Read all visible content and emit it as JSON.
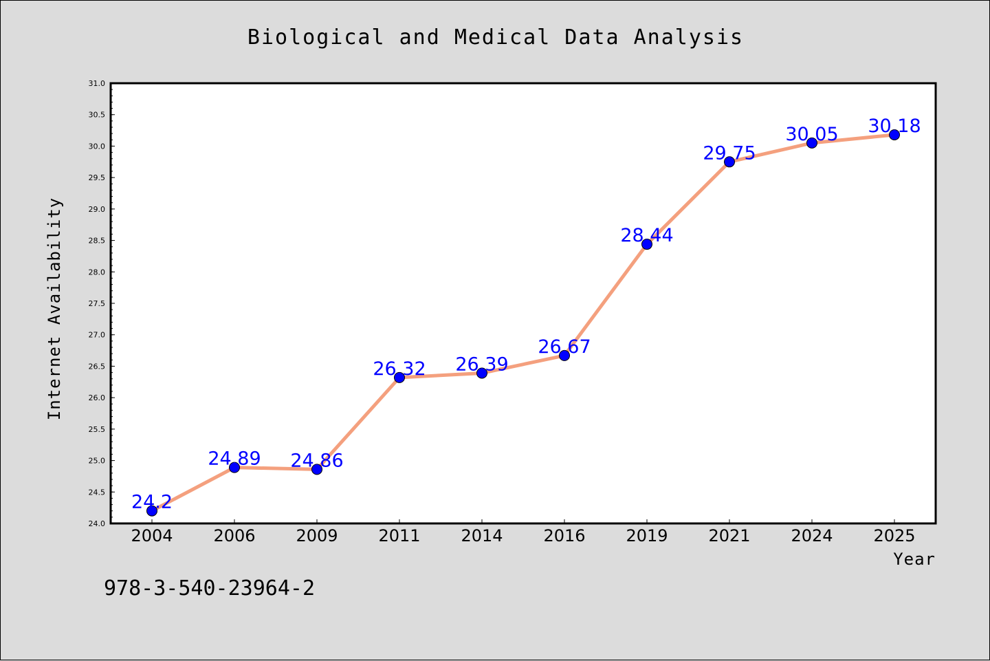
{
  "chart_data": {
    "type": "line",
    "title": "Biological and Medical Data Analysis",
    "xlabel": "Year",
    "ylabel": "Internet Availability",
    "categories": [
      "2004",
      "2006",
      "2009",
      "2011",
      "2014",
      "2016",
      "2019",
      "2021",
      "2024",
      "2025"
    ],
    "series": [
      {
        "values": [
          24.2,
          24.89,
          24.86,
          26.32,
          26.39,
          26.67,
          28.44,
          29.75,
          30.05,
          30.18
        ],
        "labels": [
          "24.2",
          "24.89",
          "24.86",
          "26.32",
          "26.39",
          "26.67",
          "28.44",
          "29.75",
          "30.05",
          "30.18"
        ],
        "line_color": "#f4a07e",
        "marker_color": "#0000ff"
      }
    ],
    "ylim": [
      24.0,
      31.0
    ],
    "yticks": [
      "24.0",
      "24.5",
      "25.0",
      "25.5",
      "26.0",
      "26.5",
      "27.0",
      "27.5",
      "28.0",
      "28.5",
      "29.0",
      "29.5",
      "30.0",
      "30.5",
      "31.0"
    ],
    "grid": false,
    "legend": "none"
  },
  "annotation": "978-3-540-23964-2",
  "colors": {
    "background": "#dcdcdc",
    "plot_background": "#ffffff",
    "label_color": "#0000ff"
  }
}
